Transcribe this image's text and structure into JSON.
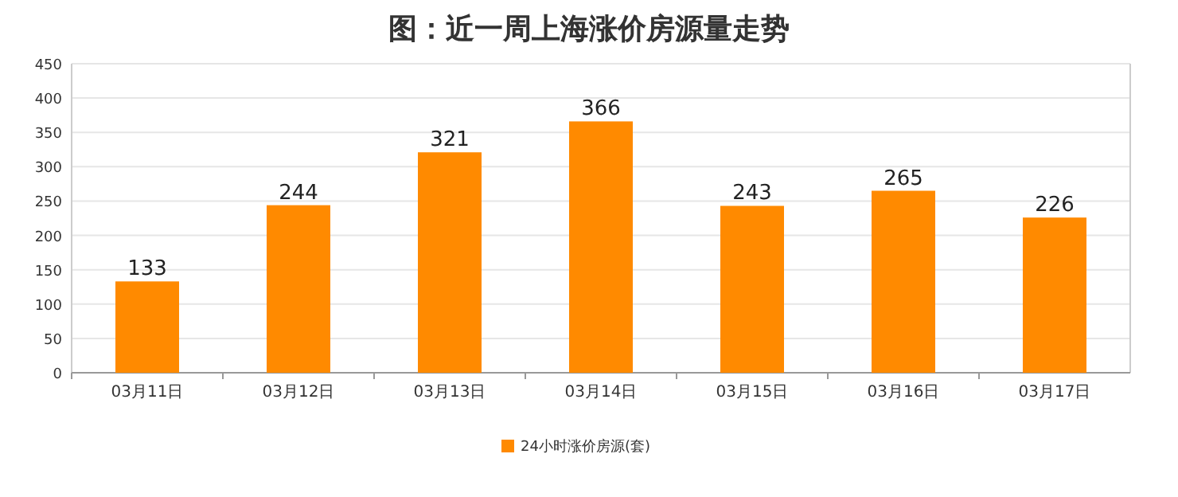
{
  "chart_data": {
    "type": "bar",
    "title": "图：近一周上海涨价房源量走势",
    "categories": [
      "03月11日",
      "03月12日",
      "03月13日",
      "03月14日",
      "03月15日",
      "03月16日",
      "03月17日"
    ],
    "series": [
      {
        "name": "24小时涨价房源(套)",
        "color": "#ff8a00",
        "values": [
          133,
          244,
          321,
          366,
          243,
          265,
          226
        ]
      }
    ],
    "ylim": [
      0,
      450
    ],
    "yticks": [
      0,
      50,
      100,
      150,
      200,
      250,
      300,
      350,
      400,
      450
    ],
    "grid": "y",
    "legend": "bottom",
    "data_labels": true
  }
}
